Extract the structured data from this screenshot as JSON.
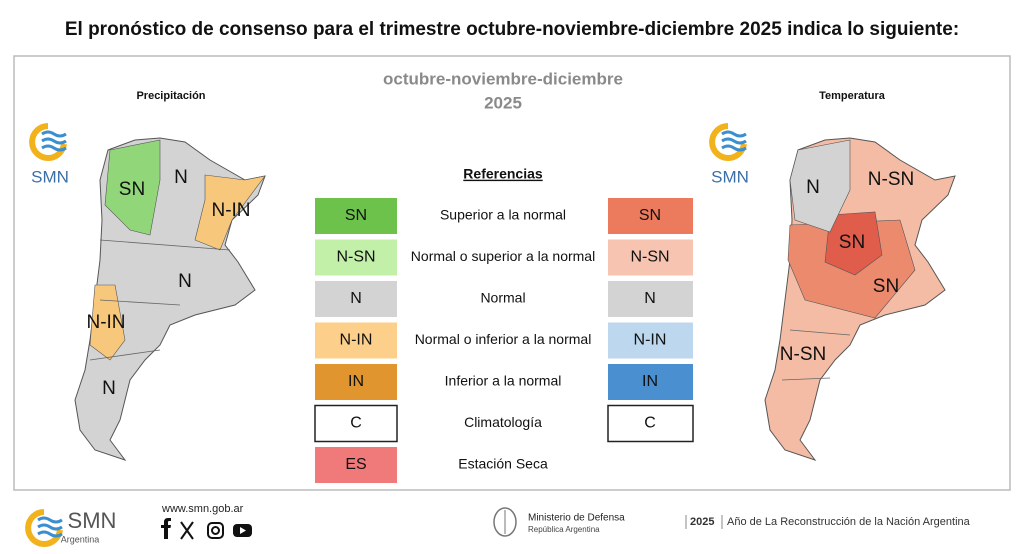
{
  "header": {
    "title": "El pronóstico de consenso para el trimestre octubre-noviembre-diciembre 2025 indica lo siguiente:"
  },
  "panel": {
    "period": "octubre-noviembre-diciembre",
    "year": "2025",
    "precipitation_map": {
      "title": "Precipitación",
      "logo": "SMN",
      "labels": [
        "SN",
        "N",
        "N-IN",
        "N",
        "N-IN",
        "N"
      ]
    },
    "temperature_map": {
      "title": "Temperatura",
      "logo": "SMN",
      "labels": [
        "N",
        "N-SN",
        "SN",
        "SN",
        "N-SN"
      ]
    },
    "legend": {
      "title": "Referencias",
      "rows": [
        {
          "precipitation": "SN",
          "description": "Superior a la normal",
          "temperature": "SN"
        },
        {
          "precipitation": "N-SN",
          "description": "Normal o superior a la normal",
          "temperature": "N-SN"
        },
        {
          "precipitation": "N",
          "description": "Normal",
          "temperature": "N"
        },
        {
          "precipitation": "N-IN",
          "description": "Normal o inferior a la normal",
          "temperature": "N-IN"
        },
        {
          "precipitation": "IN",
          "description": "Inferior a la normal",
          "temperature": "IN"
        },
        {
          "precipitation": "C",
          "description": "Climatología",
          "temperature": "C"
        },
        {
          "precipitation": "ES",
          "description": "Estación Seca"
        }
      ]
    }
  },
  "footer": {
    "logo": "SMN",
    "logo_sub": "Argentina",
    "url": "www.smn.gob.ar",
    "ministry": "Ministerio de Defensa",
    "ministry_sub": "República Argentina",
    "year": "2025",
    "slogan": "Año de La Reconstrucción de la Nación Argentina"
  }
}
